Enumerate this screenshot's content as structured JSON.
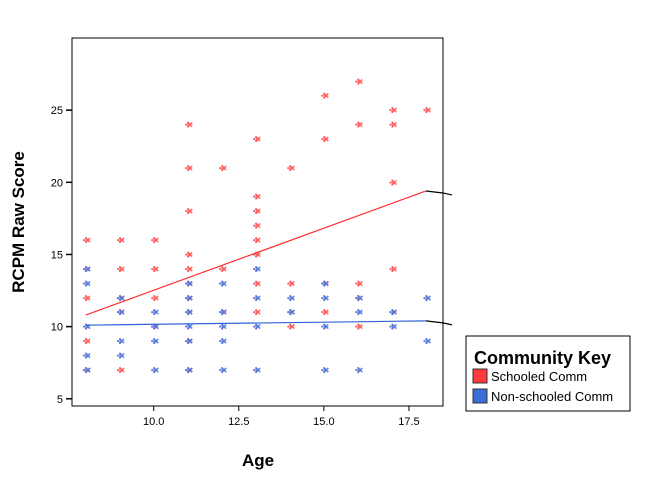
{
  "chart_data": {
    "type": "scatter",
    "title": "",
    "xlabel": "Age",
    "ylabel": "RCPM Raw Score",
    "xlim": [
      7.6,
      18.5
    ],
    "ylim": [
      4.5,
      30
    ],
    "x_ticks": [
      10.0,
      12.5,
      15.0,
      17.5
    ],
    "x_tick_labels": [
      "10.0",
      "12.5",
      "15.0",
      "17.5"
    ],
    "y_ticks": [
      5,
      10,
      15,
      20,
      25
    ],
    "y_tick_labels": [
      "5",
      "10",
      "15",
      "20",
      "25"
    ],
    "grid": false,
    "legend": {
      "title": "Community Key",
      "placement": "right",
      "entries": [
        {
          "label": "Schooled Comm",
          "color": "#ff3b3b"
        },
        {
          "label": "Non-schooled Comm",
          "color": "#3a6fd8"
        }
      ]
    },
    "series": [
      {
        "name": "Schooled Comm",
        "color": "#ff5a5a",
        "points": [
          [
            8,
            16
          ],
          [
            8,
            14
          ],
          [
            8,
            12
          ],
          [
            8,
            9
          ],
          [
            8,
            7
          ],
          [
            9,
            16
          ],
          [
            9,
            14
          ],
          [
            9,
            12
          ],
          [
            9,
            11
          ],
          [
            9,
            7
          ],
          [
            10,
            16
          ],
          [
            10,
            14
          ],
          [
            10,
            12
          ],
          [
            10,
            10
          ],
          [
            11,
            24
          ],
          [
            11,
            21
          ],
          [
            11,
            18
          ],
          [
            11,
            15
          ],
          [
            11,
            14
          ],
          [
            11,
            13
          ],
          [
            11,
            12
          ],
          [
            11,
            11
          ],
          [
            11,
            9
          ],
          [
            11,
            7
          ],
          [
            12,
            21
          ],
          [
            12,
            14
          ],
          [
            12,
            11
          ],
          [
            13,
            23
          ],
          [
            13,
            19
          ],
          [
            13,
            18
          ],
          [
            13,
            17
          ],
          [
            13,
            16
          ],
          [
            13,
            15
          ],
          [
            13,
            13
          ],
          [
            13,
            11
          ],
          [
            14,
            21
          ],
          [
            14,
            13
          ],
          [
            14,
            11
          ],
          [
            14,
            10
          ],
          [
            15,
            26
          ],
          [
            15,
            23
          ],
          [
            15,
            13
          ],
          [
            15,
            11
          ],
          [
            16,
            27
          ],
          [
            16,
            24
          ],
          [
            16,
            13
          ],
          [
            16,
            12
          ],
          [
            16,
            10
          ],
          [
            17,
            25
          ],
          [
            17,
            24
          ],
          [
            17,
            20
          ],
          [
            17,
            14
          ],
          [
            17,
            11
          ],
          [
            18,
            25
          ]
        ],
        "fit": {
          "x": [
            8,
            18
          ],
          "y": [
            10.8,
            19.4
          ]
        }
      },
      {
        "name": "Non-schooled Comm",
        "color": "#5577dd",
        "points": [
          [
            8,
            14
          ],
          [
            8,
            13
          ],
          [
            8,
            10
          ],
          [
            8,
            8
          ],
          [
            8,
            7
          ],
          [
            9,
            12
          ],
          [
            9,
            11
          ],
          [
            9,
            9
          ],
          [
            9,
            8
          ],
          [
            10,
            11
          ],
          [
            10,
            10
          ],
          [
            10,
            9
          ],
          [
            10,
            7
          ],
          [
            11,
            13
          ],
          [
            11,
            12
          ],
          [
            11,
            11
          ],
          [
            11,
            10
          ],
          [
            11,
            9
          ],
          [
            11,
            7
          ],
          [
            12,
            13
          ],
          [
            12,
            11
          ],
          [
            12,
            10
          ],
          [
            12,
            9
          ],
          [
            12,
            7
          ],
          [
            13,
            14
          ],
          [
            13,
            12
          ],
          [
            13,
            10
          ],
          [
            13,
            7
          ],
          [
            14,
            12
          ],
          [
            14,
            11
          ],
          [
            15,
            13
          ],
          [
            15,
            12
          ],
          [
            15,
            10
          ],
          [
            15,
            7
          ],
          [
            16,
            12
          ],
          [
            16,
            11
          ],
          [
            16,
            7
          ],
          [
            17,
            11
          ],
          [
            17,
            10
          ],
          [
            18,
            12
          ],
          [
            18,
            9
          ]
        ],
        "fit": {
          "x": [
            8,
            18
          ],
          "y": [
            10.1,
            10.4
          ]
        }
      }
    ]
  }
}
